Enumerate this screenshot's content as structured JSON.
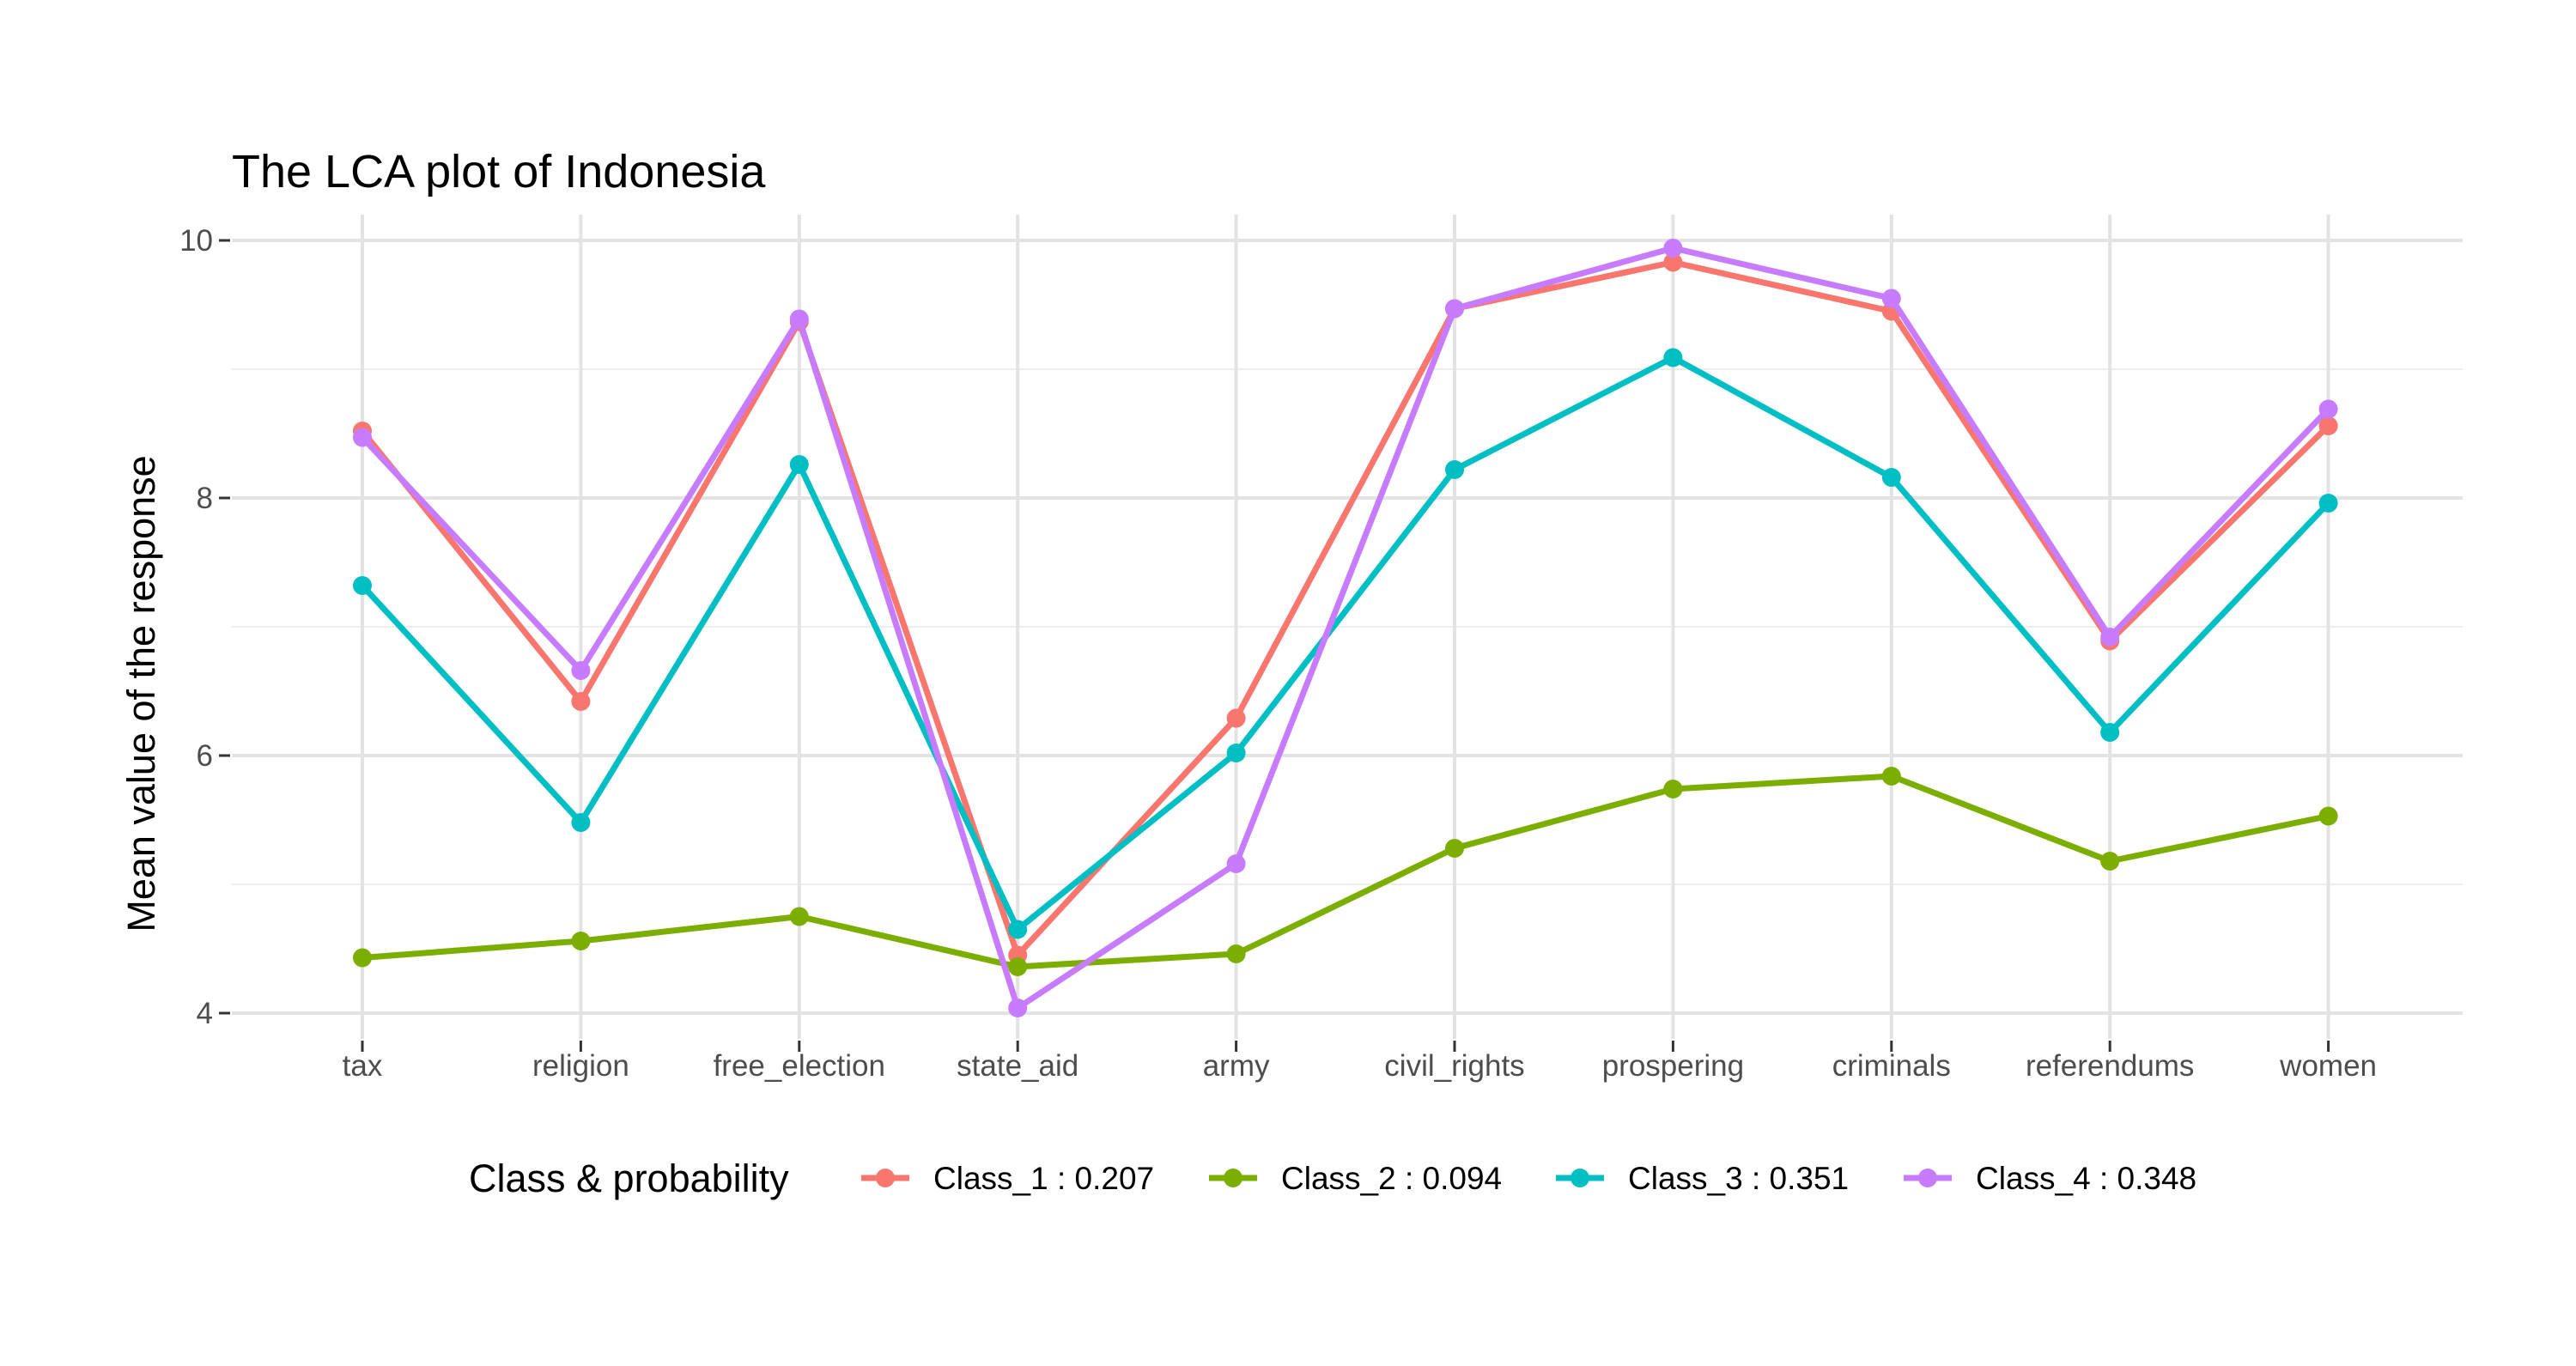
{
  "chart_data": {
    "type": "line",
    "title": "The LCA plot of Indonesia",
    "xlabel": "",
    "ylabel": "Mean value of the response",
    "categories": [
      "tax",
      "religion",
      "free_election",
      "state_aid",
      "army",
      "civil_rights",
      "prospering",
      "criminals",
      "referendums",
      "women"
    ],
    "ylim": [
      3.8,
      10.2
    ],
    "yticks": [
      4,
      6,
      8,
      10
    ],
    "grid": true,
    "legend": {
      "title": "Class & probability",
      "position": "bottom"
    },
    "series": [
      {
        "name": "Class_1 : 0.207",
        "color": "#F8766D",
        "values": [
          8.52,
          6.42,
          9.37,
          4.45,
          6.29,
          9.47,
          9.83,
          9.45,
          6.89,
          8.56
        ]
      },
      {
        "name": "Class_2 : 0.094",
        "color": "#7CAE00",
        "values": [
          4.43,
          4.56,
          4.75,
          4.36,
          4.46,
          5.28,
          5.74,
          5.84,
          5.18,
          5.53
        ]
      },
      {
        "name": "Class_3 : 0.351",
        "color": "#00BFC4",
        "values": [
          7.32,
          5.48,
          8.26,
          4.65,
          6.02,
          8.22,
          9.09,
          8.16,
          6.18,
          7.96
        ]
      },
      {
        "name": "Class_4 : 0.348",
        "color": "#C77CFF",
        "values": [
          8.47,
          6.66,
          9.39,
          4.04,
          5.16,
          9.47,
          9.94,
          9.55,
          6.92,
          8.69
        ]
      }
    ]
  }
}
